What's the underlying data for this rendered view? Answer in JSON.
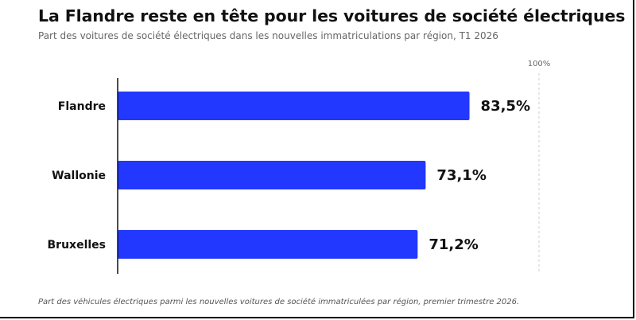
{
  "title": "La Flandre reste en tête pour les voitures de société électriques",
  "subtitle": "Part des voitures de société électriques dans les nouvelles immatriculations par région, T1 2026",
  "footnote": "Part des véhicules électriques parmi les nouvelles voitures de société immatriculées par région, premier trimestre 2026.",
  "colors": {
    "bar": "#2238ff",
    "axis": "#111111",
    "gridline": "#cccccc"
  },
  "chart_data": {
    "type": "bar",
    "orientation": "horizontal",
    "categories": [
      "Flandre",
      "Wallonie",
      "Bruxelles"
    ],
    "values": [
      83.5,
      73.1,
      71.2
    ],
    "data_labels": [
      "83,5%",
      "73,1%",
      "71,2%"
    ],
    "xlim": [
      0,
      100
    ],
    "reference_tick": "100%",
    "grid": false
  }
}
